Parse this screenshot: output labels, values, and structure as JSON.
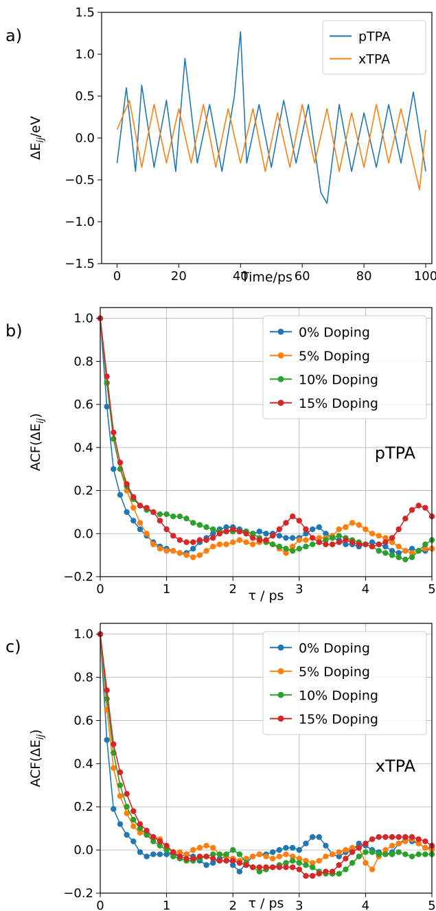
{
  "panels": [
    {
      "label": "a)",
      "chart_data": {
        "type": "line",
        "xlabel": "Time/ps",
        "ylabel": "ΔE_ij/eV",
        "xlim": [
          -5,
          102
        ],
        "ylim": [
          -1.5,
          1.5
        ],
        "xticks": [
          0,
          20,
          40,
          60,
          80,
          100
        ],
        "yticks": [
          -1.5,
          -1.0,
          -0.5,
          0.0,
          0.5,
          1.0,
          1.5
        ],
        "yticklabels": [
          "−1.5",
          "−1.0",
          "−0.5",
          "0.0",
          "0.5",
          "1.0",
          "1.5"
        ],
        "grid": false,
        "legend_position": "top-right",
        "series": [
          {
            "name": "pTPA",
            "color": "#1f77b4",
            "x": [
              0,
              3,
              6,
              8,
              12,
              16,
              19,
              22,
              26,
              30,
              34,
              38,
              40,
              42,
              46,
              50,
              54,
              58,
              62,
              66,
              68,
              72,
              76,
              80,
              84,
              88,
              92,
              96,
              100
            ],
            "values": [
              -0.3,
              0.6,
              -0.4,
              0.63,
              -0.35,
              0.45,
              -0.4,
              0.95,
              -0.3,
              0.4,
              -0.4,
              0.5,
              1.27,
              -0.3,
              0.4,
              -0.35,
              0.45,
              -0.3,
              0.4,
              -0.65,
              -0.78,
              0.4,
              -0.4,
              0.3,
              -0.35,
              0.4,
              -0.3,
              0.55,
              -0.4
            ]
          },
          {
            "name": "xTPA",
            "color": "#ff7f0e",
            "x": [
              0,
              4,
              8,
              12,
              16,
              20,
              24,
              28,
              32,
              36,
              40,
              44,
              48,
              52,
              56,
              60,
              64,
              68,
              72,
              76,
              80,
              84,
              88,
              92,
              96,
              98,
              100
            ],
            "values": [
              0.1,
              0.45,
              -0.35,
              0.4,
              -0.3,
              0.35,
              -0.3,
              0.4,
              -0.35,
              0.35,
              -0.3,
              0.35,
              -0.4,
              0.3,
              -0.35,
              0.4,
              -0.3,
              0.35,
              -0.4,
              0.3,
              -0.35,
              0.4,
              -0.3,
              0.35,
              -0.3,
              -0.62,
              0.1
            ]
          }
        ]
      }
    },
    {
      "label": "b)",
      "annotation": "pTPA",
      "chart_data": {
        "type": "line",
        "xlabel": "τ / ps",
        "ylabel": "ACF(ΔE_ij)",
        "xlim": [
          0,
          5
        ],
        "ylim": [
          -0.2,
          1.05
        ],
        "xticks": [
          0,
          1,
          2,
          3,
          4,
          5
        ],
        "yticks": [
          -0.2,
          0.0,
          0.2,
          0.4,
          0.6,
          0.8,
          1.0
        ],
        "yticklabels": [
          "−0.2",
          "0.0",
          "0.2",
          "0.4",
          "0.6",
          "0.8",
          "1.0"
        ],
        "grid": true,
        "legend_position": "top-right",
        "x": [
          0,
          0.1,
          0.2,
          0.3,
          0.4,
          0.5,
          0.6,
          0.7,
          0.8,
          0.9,
          1.0,
          1.1,
          1.2,
          1.3,
          1.4,
          1.5,
          1.6,
          1.7,
          1.8,
          1.9,
          2.0,
          2.1,
          2.2,
          2.3,
          2.4,
          2.5,
          2.6,
          2.7,
          2.8,
          2.9,
          3.0,
          3.1,
          3.2,
          3.3,
          3.4,
          3.5,
          3.6,
          3.7,
          3.8,
          3.9,
          4.0,
          4.1,
          4.2,
          4.3,
          4.4,
          4.5,
          4.6,
          4.7,
          4.8,
          4.9,
          5.0
        ],
        "series": [
          {
            "name": "0% Doping",
            "color": "#1f77b4",
            "values": [
              1.0,
              0.59,
              0.3,
              0.18,
              0.1,
              0.06,
              0.02,
              -0.01,
              -0.04,
              -0.06,
              -0.07,
              -0.08,
              -0.09,
              -0.09,
              -0.07,
              -0.04,
              -0.02,
              0.0,
              0.02,
              0.03,
              0.03,
              0.02,
              0.01,
              0.0,
              0.01,
              0.0,
              0.0,
              -0.01,
              -0.02,
              -0.02,
              -0.02,
              0.0,
              0.02,
              0.03,
              0.0,
              -0.02,
              -0.03,
              -0.05,
              -0.05,
              -0.06,
              -0.05,
              -0.04,
              -0.05,
              -0.06,
              -0.08,
              -0.09,
              -0.08,
              -0.07,
              -0.08,
              -0.08,
              -0.07
            ]
          },
          {
            "name": "5% Doping",
            "color": "#ff7f0e",
            "values": [
              1.0,
              0.7,
              0.44,
              0.3,
              0.2,
              0.12,
              0.05,
              0.0,
              -0.05,
              -0.07,
              -0.08,
              -0.08,
              -0.09,
              -0.1,
              -0.11,
              -0.1,
              -0.08,
              -0.06,
              -0.05,
              -0.05,
              -0.04,
              -0.03,
              -0.04,
              -0.05,
              -0.04,
              -0.03,
              -0.05,
              -0.07,
              -0.09,
              -0.06,
              -0.03,
              -0.03,
              -0.02,
              -0.02,
              -0.02,
              -0.01,
              0.02,
              0.03,
              0.05,
              0.04,
              0.02,
              0.0,
              -0.01,
              -0.02,
              -0.04,
              -0.06,
              -0.08,
              -0.09,
              -0.08,
              -0.07,
              -0.07
            ]
          },
          {
            "name": "10% Doping",
            "color": "#2ca02c",
            "values": [
              1.0,
              0.7,
              0.44,
              0.3,
              0.22,
              0.16,
              0.13,
              0.11,
              0.1,
              0.09,
              0.09,
              0.08,
              0.08,
              0.07,
              0.05,
              0.04,
              0.03,
              0.02,
              0.01,
              0.01,
              0.01,
              0.01,
              0.01,
              0.0,
              -0.02,
              -0.04,
              -0.05,
              -0.06,
              -0.07,
              -0.08,
              -0.07,
              -0.06,
              -0.05,
              -0.04,
              -0.03,
              -0.02,
              -0.01,
              -0.02,
              -0.03,
              -0.04,
              -0.05,
              -0.06,
              -0.08,
              -0.09,
              -0.1,
              -0.11,
              -0.12,
              -0.11,
              -0.08,
              -0.05,
              -0.03
            ]
          },
          {
            "name": "15% Doping",
            "color": "#d62728",
            "values": [
              1.0,
              0.73,
              0.47,
              0.33,
              0.23,
              0.17,
              0.13,
              0.12,
              0.1,
              0.06,
              0.02,
              -0.01,
              -0.03,
              -0.04,
              -0.04,
              -0.03,
              -0.03,
              -0.02,
              0.0,
              0.01,
              0.02,
              0.01,
              0.0,
              -0.02,
              -0.03,
              -0.03,
              -0.01,
              0.02,
              0.05,
              0.08,
              0.06,
              0.02,
              -0.02,
              -0.04,
              -0.05,
              -0.05,
              -0.04,
              -0.03,
              -0.04,
              -0.05,
              -0.05,
              -0.06,
              -0.05,
              -0.04,
              -0.02,
              0.02,
              0.07,
              0.11,
              0.13,
              0.12,
              0.08
            ]
          }
        ]
      }
    },
    {
      "label": "c)",
      "annotation": "xTPA",
      "chart_data": {
        "type": "line",
        "xlabel": "τ / ps",
        "ylabel": "ACF(ΔE_ij)",
        "xlim": [
          0,
          5
        ],
        "ylim": [
          -0.2,
          1.05
        ],
        "xticks": [
          0,
          1,
          2,
          3,
          4,
          5
        ],
        "yticks": [
          -0.2,
          0.0,
          0.2,
          0.4,
          0.6,
          0.8,
          1.0
        ],
        "yticklabels": [
          "−0.2",
          "0.0",
          "0.2",
          "0.4",
          "0.6",
          "0.8",
          "1.0"
        ],
        "grid": true,
        "legend_position": "top-right",
        "x": [
          0,
          0.1,
          0.2,
          0.3,
          0.4,
          0.5,
          0.6,
          0.7,
          0.8,
          0.9,
          1.0,
          1.1,
          1.2,
          1.3,
          1.4,
          1.5,
          1.6,
          1.7,
          1.8,
          1.9,
          2.0,
          2.1,
          2.2,
          2.3,
          2.4,
          2.5,
          2.6,
          2.7,
          2.8,
          2.9,
          3.0,
          3.1,
          3.2,
          3.3,
          3.4,
          3.5,
          3.6,
          3.7,
          3.8,
          3.9,
          4.0,
          4.1,
          4.2,
          4.3,
          4.4,
          4.5,
          4.6,
          4.7,
          4.8,
          4.9,
          5.0
        ],
        "series": [
          {
            "name": "0% Doping",
            "color": "#1f77b4",
            "values": [
              1.0,
              0.51,
              0.19,
              0.12,
              0.07,
              0.04,
              -0.01,
              -0.03,
              -0.02,
              -0.02,
              -0.02,
              -0.02,
              -0.03,
              -0.02,
              -0.03,
              -0.05,
              -0.07,
              -0.06,
              -0.04,
              -0.03,
              -0.07,
              -0.1,
              -0.06,
              -0.03,
              -0.02,
              -0.02,
              -0.01,
              0.0,
              0.01,
              0.01,
              0.0,
              0.03,
              0.06,
              0.06,
              0.02,
              -0.02,
              -0.03,
              -0.01,
              0.0,
              0.03,
              0.02,
              0.0,
              -0.01,
              -0.02,
              -0.01,
              0.03,
              0.05,
              0.04,
              0.03,
              0.01,
              0.01
            ]
          },
          {
            "name": "5% Doping",
            "color": "#ff7f0e",
            "values": [
              1.0,
              0.65,
              0.38,
              0.25,
              0.17,
              0.11,
              0.08,
              0.07,
              0.06,
              0.05,
              0.01,
              -0.01,
              -0.01,
              -0.02,
              0.0,
              0.01,
              0.02,
              0.01,
              -0.02,
              -0.03,
              -0.04,
              -0.05,
              -0.04,
              -0.03,
              -0.02,
              -0.03,
              -0.04,
              -0.03,
              -0.02,
              -0.03,
              -0.04,
              -0.05,
              -0.06,
              -0.05,
              -0.03,
              -0.02,
              -0.01,
              0.0,
              0.01,
              0.01,
              -0.06,
              -0.09,
              -0.03,
              0.0,
              0.02,
              0.03,
              0.04,
              0.05,
              0.03,
              0.01,
              0.0
            ]
          },
          {
            "name": "10% Doping",
            "color": "#2ca02c",
            "values": [
              1.0,
              0.7,
              0.45,
              0.3,
              0.2,
              0.14,
              0.1,
              0.07,
              0.04,
              0.02,
              0.0,
              -0.03,
              -0.04,
              -0.05,
              -0.05,
              -0.04,
              -0.03,
              -0.02,
              -0.02,
              -0.02,
              0.0,
              -0.02,
              -0.06,
              -0.08,
              -0.1,
              -0.09,
              -0.08,
              -0.07,
              -0.06,
              -0.05,
              -0.06,
              -0.07,
              -0.08,
              -0.1,
              -0.11,
              -0.11,
              -0.11,
              -0.09,
              -0.06,
              -0.03,
              -0.01,
              -0.01,
              -0.02,
              -0.02,
              -0.02,
              -0.01,
              -0.02,
              -0.03,
              -0.02,
              -0.02,
              -0.02
            ]
          },
          {
            "name": "15% Doping",
            "color": "#d62728",
            "values": [
              1.0,
              0.74,
              0.49,
              0.36,
              0.26,
              0.18,
              0.12,
              0.09,
              0.06,
              0.04,
              0.02,
              -0.01,
              -0.03,
              -0.04,
              -0.04,
              -0.03,
              -0.03,
              -0.04,
              -0.05,
              -0.05,
              -0.05,
              -0.06,
              -0.07,
              -0.08,
              -0.08,
              -0.08,
              -0.08,
              -0.08,
              -0.08,
              -0.08,
              -0.09,
              -0.12,
              -0.12,
              -0.11,
              -0.1,
              -0.1,
              -0.07,
              -0.04,
              -0.01,
              0.01,
              0.03,
              0.05,
              0.06,
              0.06,
              0.06,
              0.06,
              0.06,
              0.06,
              0.05,
              0.04,
              0.02
            ]
          }
        ]
      }
    }
  ]
}
